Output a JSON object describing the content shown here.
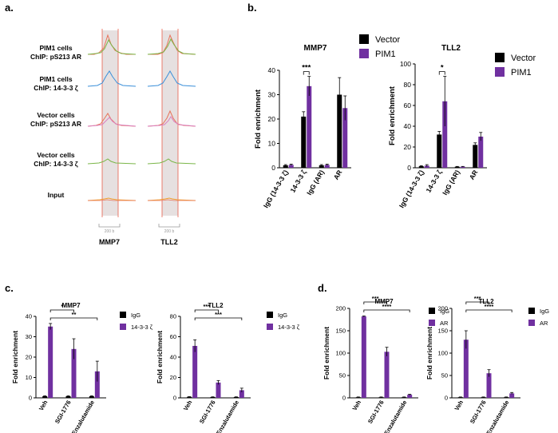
{
  "colors": {
    "black": "#000000",
    "purple": "#7030a0",
    "track_red": "#e8735a",
    "track_green": "#7ab648",
    "track_pink": "#d97fbf",
    "track_blue": "#3a8fd9",
    "track_orange": "#f0a030",
    "band": "#e6e0e0",
    "vline": "#e8604c"
  },
  "panel_a": {
    "label": "a.",
    "tracks": [
      {
        "line1": "PIM1 cells",
        "line2": "ChIP: pS213 AR"
      },
      {
        "line1": "PIM1 cells",
        "line2": "ChIP: 14-3-3 ζ"
      },
      {
        "line1": "Vector cells",
        "line2": "ChIP: pS213 AR"
      },
      {
        "line1": "Vector cells",
        "line2": "ChIP: 14-3-3 ζ"
      },
      {
        "line1": "Input",
        "line2": ""
      }
    ],
    "genes": [
      "MMP7",
      "TLL2"
    ],
    "scale_labels": [
      "200 b",
      "200 b"
    ]
  },
  "panel_b": {
    "label": "b.",
    "legend": [
      "Vector",
      "PIM1"
    ],
    "categories": [
      "IgG (14-3-3 ζ)",
      "14-3-3 ζ",
      "IgG (AR)",
      "AR"
    ],
    "ylabel": "Fold enrichment"
  },
  "panel_c": {
    "label": "c.",
    "legend": [
      "IgG",
      "14-3-3 ζ"
    ],
    "categories": [
      "Veh",
      "SGI-1776",
      "Enzalutamide"
    ],
    "ylabel": "Fold enrichment"
  },
  "panel_d": {
    "label": "d.",
    "legend": [
      "IgG",
      "AR"
    ],
    "categories": [
      "Veh",
      "SGI-1776",
      "Enzalutamide"
    ],
    "ylabel": "Fold enrichment"
  },
  "chart_data": [
    {
      "id": "b_mmp7",
      "type": "bar",
      "title": "MMP7",
      "ylabel": "Fold enrichment",
      "categories": [
        "IgG (14-3-3 ζ)",
        "14-3-3 ζ",
        "IgG (AR)",
        "AR"
      ],
      "ylim": [
        0,
        40
      ],
      "yticks": [
        0,
        10,
        20,
        30,
        40
      ],
      "series": [
        {
          "name": "Vector",
          "values": [
            1,
            21,
            1,
            30
          ],
          "errors": [
            0.3,
            2,
            0.3,
            7
          ]
        },
        {
          "name": "PIM1",
          "values": [
            1.2,
            33.5,
            1.2,
            24.5
          ],
          "errors": [
            0.3,
            4,
            0.3,
            5
          ]
        }
      ],
      "significance": [
        {
          "cat": 1,
          "text": "***"
        }
      ]
    },
    {
      "id": "b_tll2",
      "type": "bar",
      "title": "TLL2",
      "ylabel": "Fold enrichment",
      "categories": [
        "IgG (14-3-3 ζ)",
        "14-3-3 ζ",
        "IgG (AR)",
        "AR"
      ],
      "ylim": [
        0,
        100
      ],
      "yticks": [
        0,
        20,
        40,
        60,
        80,
        100
      ],
      "series": [
        {
          "name": "Vector",
          "values": [
            1.5,
            32,
            1,
            22
          ],
          "errors": [
            0.5,
            3,
            0.3,
            2
          ]
        },
        {
          "name": "PIM1",
          "values": [
            2,
            64,
            1,
            30
          ],
          "errors": [
            1,
            24,
            0.3,
            4
          ]
        }
      ],
      "significance": [
        {
          "cat": 1,
          "text": "*"
        }
      ]
    },
    {
      "id": "c_mmp7",
      "type": "bar",
      "title": "MMP7",
      "ylabel": "Fold enrichment",
      "categories": [
        "Veh",
        "SGI-1776",
        "Enzalutamide"
      ],
      "ylim": [
        0,
        40
      ],
      "yticks": [
        0,
        10,
        20,
        30,
        40
      ],
      "series": [
        {
          "name": "IgG",
          "values": [
            0.8,
            0.8,
            0.8
          ],
          "errors": [
            0.2,
            0.2,
            0.2
          ]
        },
        {
          "name": "14-3-3 ζ",
          "values": [
            35,
            24,
            13
          ],
          "errors": [
            1.5,
            5,
            5
          ]
        }
      ],
      "brackets": [
        {
          "from": 0,
          "to": 1,
          "text": "*"
        },
        {
          "from": 0,
          "to": 2,
          "text": "**"
        }
      ]
    },
    {
      "id": "c_tll2",
      "type": "bar",
      "title": "TLL2",
      "ylabel": "Fold enrichment",
      "categories": [
        "Veh",
        "SGI-1776",
        "Enzalutamide"
      ],
      "ylim": [
        0,
        80
      ],
      "yticks": [
        0,
        20,
        40,
        60,
        80
      ],
      "series": [
        {
          "name": "IgG",
          "values": [
            1,
            0.8,
            0.8
          ],
          "errors": [
            0.2,
            0.2,
            0.2
          ]
        },
        {
          "name": "14-3-3 ζ",
          "values": [
            51,
            15,
            7.5
          ],
          "errors": [
            6,
            2,
            2
          ]
        }
      ],
      "brackets": [
        {
          "from": 0,
          "to": 1,
          "text": "***"
        },
        {
          "from": 0,
          "to": 2,
          "text": "***"
        }
      ]
    },
    {
      "id": "d_mmp7",
      "type": "bar",
      "title": "MMP7",
      "ylabel": "Fold enrichment",
      "categories": [
        "Veh",
        "SGI-1776",
        "Enzalutamide"
      ],
      "ylim": [
        0,
        200
      ],
      "yticks": [
        0,
        50,
        100,
        150,
        200
      ],
      "series": [
        {
          "name": "IgG",
          "values": [
            1.5,
            1.5,
            1.5
          ],
          "errors": [
            0.5,
            0.5,
            0.5
          ]
        },
        {
          "name": "AR",
          "values": [
            182,
            103,
            7
          ],
          "errors": [
            1,
            10,
            1
          ]
        }
      ],
      "brackets": [
        {
          "from": 0,
          "to": 1,
          "text": "***"
        },
        {
          "from": 0,
          "to": 2,
          "text": "****"
        }
      ]
    },
    {
      "id": "d_tll2",
      "type": "bar",
      "title": "TLL2",
      "ylabel": "Fold enrichment",
      "categories": [
        "Veh",
        "SGI-1776",
        "Enzalutamide"
      ],
      "ylim": [
        0,
        200
      ],
      "yticks": [
        0,
        50,
        100,
        150,
        200
      ],
      "series": [
        {
          "name": "IgG",
          "values": [
            1.5,
            1.5,
            1.5
          ],
          "errors": [
            0.5,
            0.5,
            0.5
          ]
        },
        {
          "name": "AR",
          "values": [
            130,
            55,
            10
          ],
          "errors": [
            20,
            8,
            2
          ]
        }
      ],
      "brackets": [
        {
          "from": 0,
          "to": 1,
          "text": "***"
        },
        {
          "from": 0,
          "to": 2,
          "text": "****"
        }
      ]
    }
  ]
}
